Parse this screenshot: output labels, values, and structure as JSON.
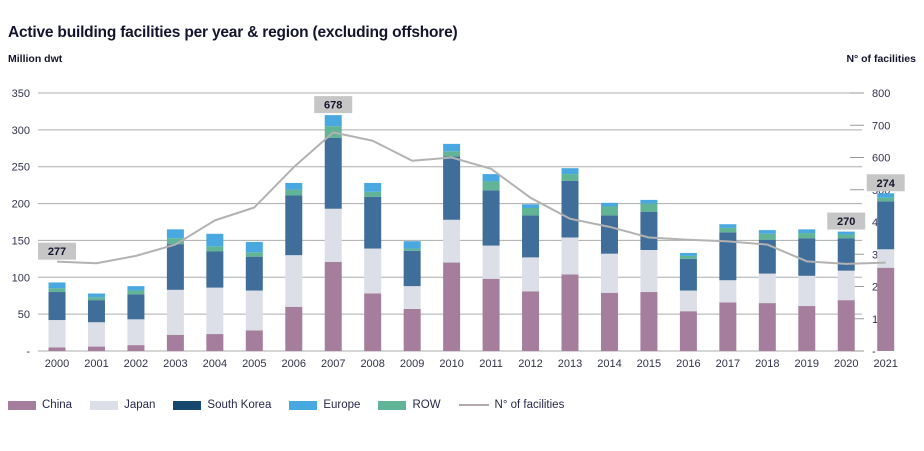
{
  "chart_data": {
    "type": "bar",
    "subtype": "stacked-bars-with-line",
    "title": "Active building facilities per year & region (excluding offshore)",
    "left_axis": {
      "label": "Million dwt",
      "min": 0,
      "max": 350,
      "step": 50,
      "zero_label": "-"
    },
    "right_axis": {
      "label": "N° of facilities",
      "min": 0,
      "max": 800,
      "step": 100,
      "zero_label": "-"
    },
    "grid": "horizontal",
    "legend_position": "bottom",
    "categories": [
      "2000",
      "2001",
      "2002",
      "2003",
      "2004",
      "2005",
      "2006",
      "2007",
      "2008",
      "2009",
      "2010",
      "2011",
      "2012",
      "2013",
      "2014",
      "2015",
      "2016",
      "2017",
      "2018",
      "2019",
      "2020",
      "2021"
    ],
    "stack_order": [
      "China",
      "Japan",
      "South Korea",
      "ROW",
      "Europe"
    ],
    "series": [
      {
        "name": "China",
        "color": "#a57e9e",
        "values": [
          5,
          6,
          8,
          22,
          23,
          28,
          60,
          121,
          78,
          57,
          120,
          98,
          81,
          104,
          79,
          80,
          54,
          66,
          65,
          61,
          69,
          113
        ]
      },
      {
        "name": "Japan",
        "color": "#dcdfe7",
        "values": [
          37,
          33,
          35,
          61,
          63,
          54,
          70,
          72,
          61,
          31,
          58,
          45,
          46,
          50,
          53,
          57,
          28,
          30,
          40,
          41,
          40,
          25
        ]
      },
      {
        "name": "South Korea",
        "color": "#3e6e99",
        "values": [
          38,
          30,
          34,
          62,
          49,
          46,
          81,
          96,
          70,
          48,
          86,
          75,
          57,
          77,
          52,
          52,
          43,
          65,
          46,
          51,
          44,
          65
        ]
      },
      {
        "name": "ROW",
        "color": "#62b496",
        "values": [
          5,
          4,
          5,
          8,
          7,
          6,
          8,
          16,
          7,
          3,
          7,
          12,
          10,
          9,
          12,
          11,
          4,
          6,
          8,
          7,
          5,
          5
        ]
      },
      {
        "name": "Europe",
        "color": "#49a8e0",
        "values": [
          8,
          5,
          6,
          12,
          17,
          14,
          9,
          15,
          12,
          10,
          10,
          10,
          5,
          8,
          5,
          5,
          4,
          5,
          5,
          5,
          4,
          6
        ]
      }
    ],
    "line_series": {
      "name": "N° of facilities",
      "axis": "right",
      "color": "#b2b2b2",
      "values": [
        277,
        272,
        295,
        330,
        405,
        445,
        570,
        678,
        652,
        590,
        600,
        565,
        475,
        410,
        385,
        352,
        345,
        340,
        330,
        278,
        270,
        274
      ]
    },
    "callouts": [
      {
        "category": "2000",
        "label": "277"
      },
      {
        "category": "2007",
        "label": "678"
      },
      {
        "category": "2020",
        "label": "270"
      },
      {
        "category": "2021",
        "label": "274"
      }
    ],
    "callout_style": {
      "background": "#c6c6c6",
      "text_color": "#14142e"
    },
    "legend": [
      {
        "name": "China",
        "color": "#a57e9e",
        "type": "box"
      },
      {
        "name": "Japan",
        "color": "#dcdfe7",
        "type": "box"
      },
      {
        "name": "South Korea",
        "color": "#16486e",
        "type": "box"
      },
      {
        "name": "Europe",
        "color": "#49a8e0",
        "type": "box"
      },
      {
        "name": "ROW",
        "color": "#62b496",
        "type": "box"
      },
      {
        "name": "N° of facilities",
        "color": "#b3a9af",
        "type": "line"
      }
    ],
    "gridline_color": "#adadad"
  }
}
